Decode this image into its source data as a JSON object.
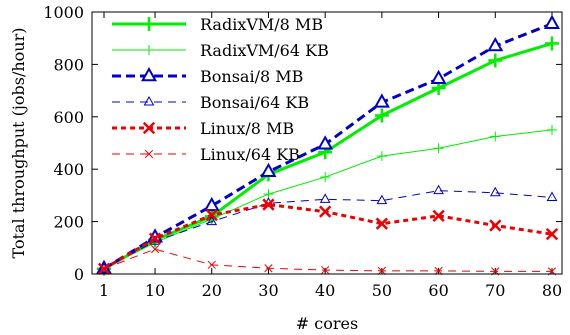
{
  "chart_data": {
    "type": "line",
    "xlabel": "# cores",
    "ylabel": "Total throughput (jobs/hour)",
    "x": [
      1,
      10,
      20,
      30,
      40,
      50,
      60,
      70,
      80
    ],
    "xticks": [
      "1",
      "10",
      "20",
      "30",
      "40",
      "50",
      "60",
      "70",
      "80"
    ],
    "yticks": [
      0,
      200,
      400,
      600,
      800,
      1000
    ],
    "ylim": [
      0,
      1000
    ],
    "legend_position": "top-left",
    "series": [
      {
        "name": "RadixVM/8 MB",
        "values": [
          20,
          130,
          220,
          380,
          465,
          605,
          710,
          815,
          880
        ],
        "color": "#00ee00",
        "dash": "solid",
        "marker": "plus",
        "weight": "thick"
      },
      {
        "name": "RadixVM/64 KB",
        "values": [
          20,
          120,
          210,
          305,
          370,
          450,
          480,
          525,
          550
        ],
        "color": "#00ee00",
        "dash": "solid",
        "marker": "plus",
        "weight": "thin"
      },
      {
        "name": "Bonsai/8 MB",
        "values": [
          20,
          140,
          260,
          390,
          495,
          655,
          745,
          870,
          955
        ],
        "color": "#0000cc",
        "dash": "dashed",
        "marker": "triangle",
        "weight": "thick"
      },
      {
        "name": "Bonsai/64 KB",
        "values": [
          20,
          125,
          200,
          270,
          285,
          280,
          318,
          310,
          292
        ],
        "color": "#0000cc",
        "dash": "dashed",
        "marker": "triangle-open",
        "weight": "thin"
      },
      {
        "name": "Linux/8 MB",
        "values": [
          20,
          135,
          225,
          265,
          238,
          192,
          222,
          185,
          152
        ],
        "color": "#ee0000",
        "dash": "dotted",
        "marker": "x",
        "weight": "thick"
      },
      {
        "name": "Linux/64 KB",
        "values": [
          20,
          95,
          35,
          22,
          15,
          12,
          12,
          10,
          10
        ],
        "color": "#ee0000",
        "dash": "dashed",
        "marker": "x",
        "weight": "thin"
      }
    ]
  }
}
